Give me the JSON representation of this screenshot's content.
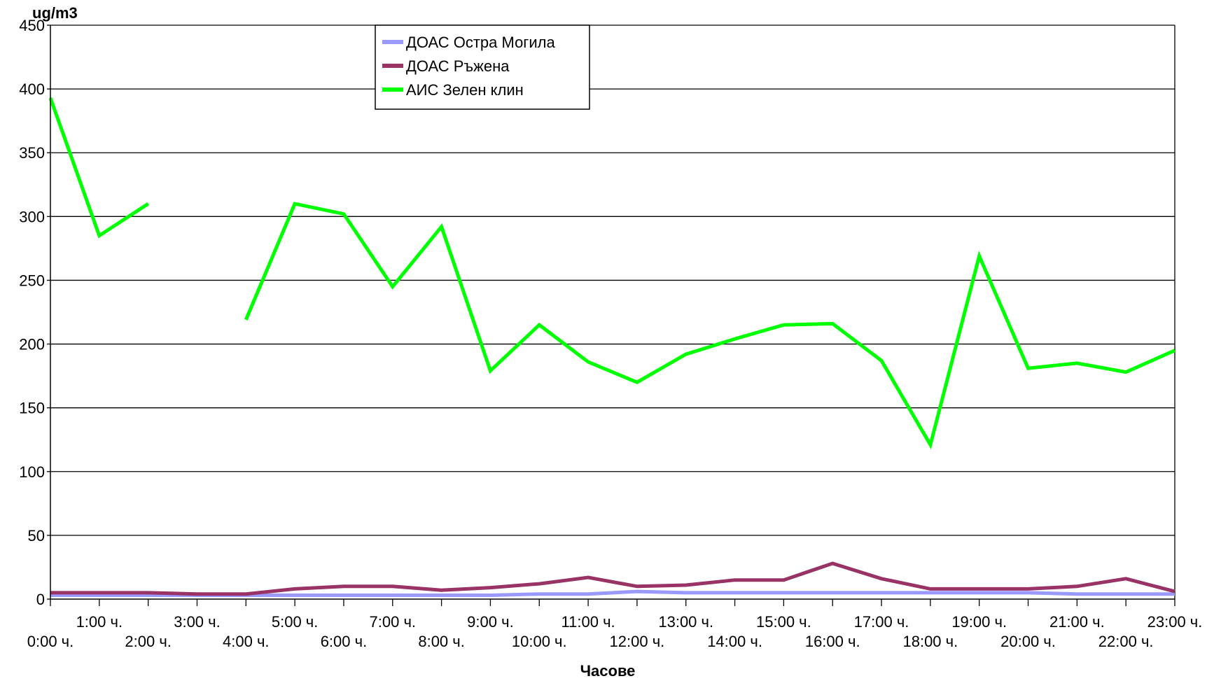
{
  "chart_data": {
    "type": "line",
    "title": "",
    "ylabel": "ug/m3",
    "xlabel": "Часове",
    "ylim": [
      0,
      450
    ],
    "yticks": [
      0,
      50,
      100,
      150,
      200,
      250,
      300,
      350,
      400,
      450
    ],
    "grid": true,
    "legend_position": "top-left",
    "categories": [
      "0:00 ч.",
      "1:00 ч.",
      "2:00 ч.",
      "3:00 ч.",
      "4:00 ч.",
      "5:00 ч.",
      "6:00 ч.",
      "7:00 ч.",
      "8:00 ч.",
      "9:00 ч.",
      "10:00 ч.",
      "11:00 ч.",
      "12:00 ч.",
      "13:00 ч.",
      "14:00 ч.",
      "15:00 ч.",
      "16:00 ч.",
      "17:00 ч.",
      "18:00 ч.",
      "19:00 ч.",
      "20:00 ч.",
      "21:00 ч.",
      "22:00 ч.",
      "23:00 ч."
    ],
    "series": [
      {
        "name": "ДОАС Остра Могила",
        "color": "#9999ff",
        "values": [
          3,
          3,
          3,
          3,
          3,
          3,
          3,
          3,
          3,
          3,
          4,
          4,
          6,
          5,
          5,
          5,
          5,
          5,
          5,
          5,
          5,
          4,
          4,
          4
        ]
      },
      {
        "name": "ДОАС Ръжена",
        "color": "#993366",
        "values": [
          5,
          5,
          5,
          4,
          4,
          8,
          10,
          10,
          7,
          9,
          12,
          17,
          10,
          11,
          15,
          15,
          28,
          16,
          8,
          8,
          8,
          10,
          16,
          6
        ]
      },
      {
        "name": "АИС Зелен клин",
        "color": "#00ff00",
        "values": [
          393,
          285,
          310,
          null,
          219,
          310,
          302,
          245,
          292,
          179,
          215,
          186,
          170,
          192,
          204,
          215,
          216,
          187,
          121,
          269,
          181,
          185,
          178,
          195
        ]
      }
    ]
  }
}
